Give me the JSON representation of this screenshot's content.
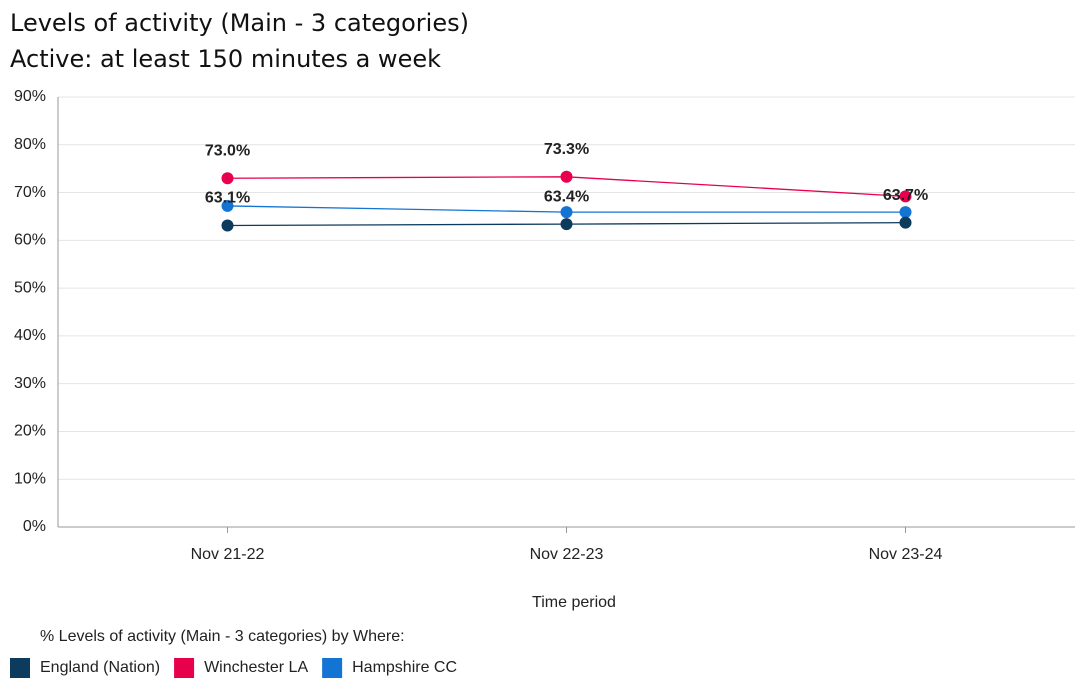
{
  "chart_data": {
    "type": "line",
    "title": "Levels of activity (Main - 3 categories)",
    "subtitle": "Active: at least 150 minutes a week",
    "x_label": "Time period",
    "legend_title": "% Levels of activity (Main - 3 categories) by Where:",
    "categories": [
      "Nov 21-22",
      "Nov 22-23",
      "Nov 23-24"
    ],
    "series": [
      {
        "name": "England (Nation)",
        "color": "#0d3b5e",
        "values": [
          63.1,
          63.4,
          63.7
        ],
        "value_labels": [
          "63.1%",
          "63.4%",
          "63.7%"
        ]
      },
      {
        "name": "Winchester LA",
        "color": "#e8004c",
        "values": [
          73.0,
          73.3,
          69.2
        ],
        "value_labels": [
          "73.0%",
          "73.3%",
          null
        ]
      },
      {
        "name": "Hampshire CC",
        "color": "#1474d4",
        "values": [
          67.2,
          65.9,
          65.9
        ]
      }
    ],
    "ylim": [
      0,
      90
    ],
    "yticks": [
      {
        "value": 0,
        "label": "0%"
      },
      {
        "value": 10,
        "label": "10%"
      },
      {
        "value": 20,
        "label": "20%"
      },
      {
        "value": 30,
        "label": "30%"
      },
      {
        "value": 40,
        "label": "40%"
      },
      {
        "value": 50,
        "label": "50%"
      },
      {
        "value": 60,
        "label": "60%"
      },
      {
        "value": 70,
        "label": "70%"
      },
      {
        "value": 80,
        "label": "80%"
      },
      {
        "value": 90,
        "label": "90%"
      }
    ],
    "grid": true
  }
}
